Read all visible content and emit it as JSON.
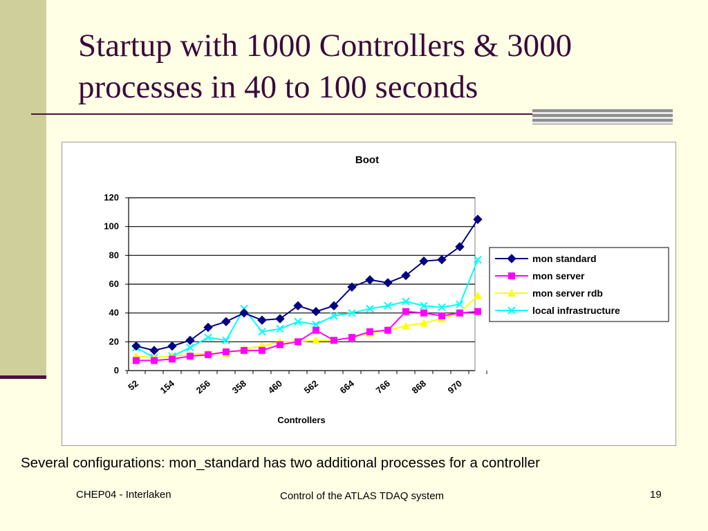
{
  "slide": {
    "title_line1": "Startup with 1000 Controllers & 3000",
    "title_line2": "processes in 40 to 100 seconds",
    "caption": "Several configurations: mon_standard has two additional processes for a controller",
    "footer_left": "CHEP04 - Interlaken",
    "footer_center": "Control of the ATLAS TDAQ system",
    "page_number": "19",
    "colors": {
      "background": "#ffffe5",
      "left_bar": "#cfcf9b",
      "accent": "#4b0f3c"
    }
  },
  "chart_data": {
    "type": "line",
    "title": "Boot",
    "xlabel": "Controllers",
    "ylabel": "",
    "ylim": [
      0,
      120
    ],
    "yticks": [
      0,
      20,
      40,
      60,
      80,
      100,
      120
    ],
    "grid": true,
    "legend_position": "right",
    "x_tick_labels": [
      "52",
      "154",
      "256",
      "358",
      "460",
      "562",
      "664",
      "766",
      "868",
      "970"
    ],
    "x_label_every": 2,
    "series": [
      {
        "name": "mon standard",
        "color": "#000080",
        "marker": "diamond",
        "values": [
          17,
          14,
          17,
          21,
          30,
          34,
          40,
          35,
          36,
          45,
          41,
          45,
          58,
          63,
          61,
          66,
          76,
          77,
          86,
          105
        ]
      },
      {
        "name": "mon server",
        "color": "#ff00ff",
        "marker": "square",
        "values": [
          7,
          7,
          8,
          10,
          11,
          13,
          14,
          14,
          18,
          20,
          28,
          21,
          23,
          27,
          28,
          41,
          40,
          38,
          40,
          41
        ]
      },
      {
        "name": "mon server rdb",
        "color": "#ffff00",
        "marker": "triangle",
        "values": [
          10,
          9,
          10,
          11,
          12,
          12,
          15,
          17,
          20,
          20,
          21,
          21,
          23,
          26,
          28,
          31,
          33,
          36,
          40,
          52
        ]
      },
      {
        "name": "local infrastructure",
        "color": "#00ffff",
        "marker": "x",
        "values": [
          16,
          9,
          10,
          16,
          23,
          21,
          43,
          27,
          29,
          34,
          32,
          38,
          40,
          43,
          45,
          48,
          45,
          44,
          46,
          77
        ]
      }
    ]
  }
}
